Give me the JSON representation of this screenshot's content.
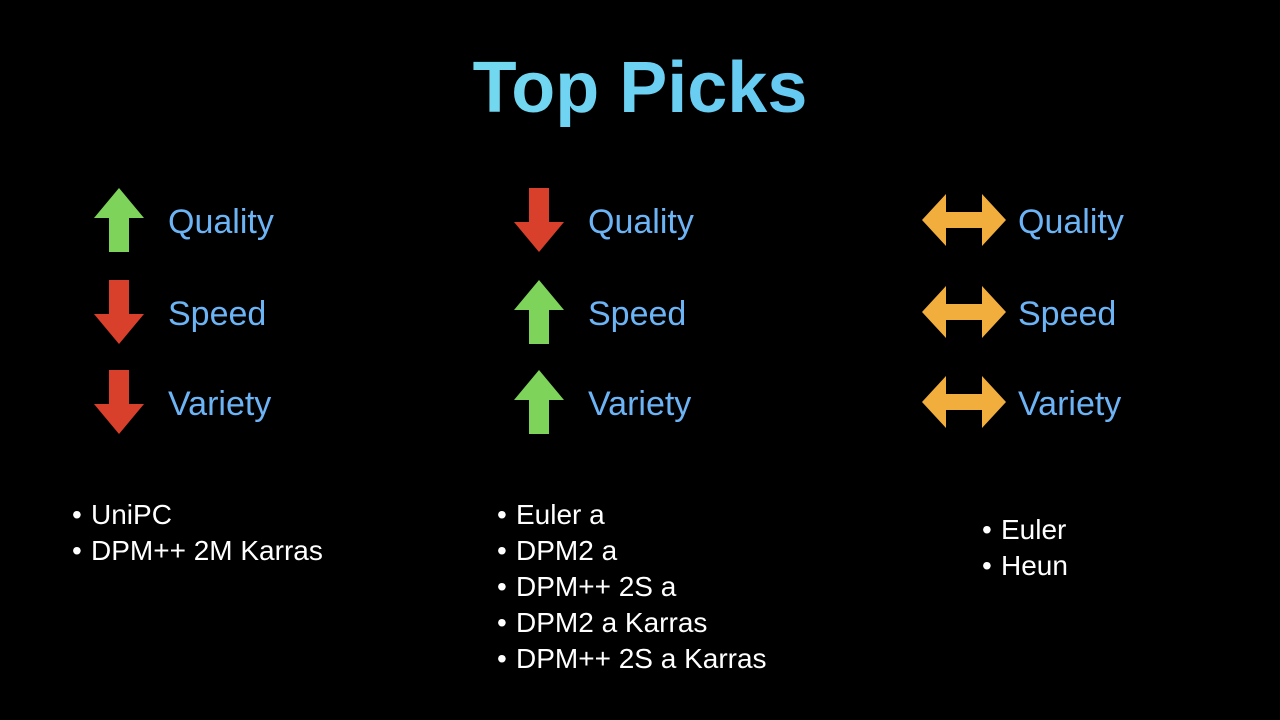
{
  "title": "Top Picks",
  "colors": {
    "arrow_up": "#7ed35a",
    "arrow_down": "#d9402c",
    "arrow_neutral": "#f2ae3d",
    "metric_label": "#6cb4f5",
    "list_text": "#ffffff",
    "background": "#000000"
  },
  "columns": [
    {
      "metrics": [
        {
          "label": "Quality",
          "icon": "arrow-up-icon"
        },
        {
          "label": "Speed",
          "icon": "arrow-down-icon"
        },
        {
          "label": "Variety",
          "icon": "arrow-down-icon"
        }
      ],
      "samplers": [
        "UniPC",
        "DPM++ 2M Karras"
      ]
    },
    {
      "metrics": [
        {
          "label": "Quality",
          "icon": "arrow-down-icon"
        },
        {
          "label": "Speed",
          "icon": "arrow-up-icon"
        },
        {
          "label": "Variety",
          "icon": "arrow-up-icon"
        }
      ],
      "samplers": [
        "Euler a",
        "DPM2 a",
        "DPM++ 2S a",
        "DPM2 a Karras",
        "DPM++ 2S a Karras"
      ]
    },
    {
      "metrics": [
        {
          "label": "Quality",
          "icon": "arrow-left-right-icon"
        },
        {
          "label": "Speed",
          "icon": "arrow-left-right-icon"
        },
        {
          "label": "Variety",
          "icon": "arrow-left-right-icon"
        }
      ],
      "samplers": [
        "Euler",
        "Heun"
      ]
    }
  ]
}
